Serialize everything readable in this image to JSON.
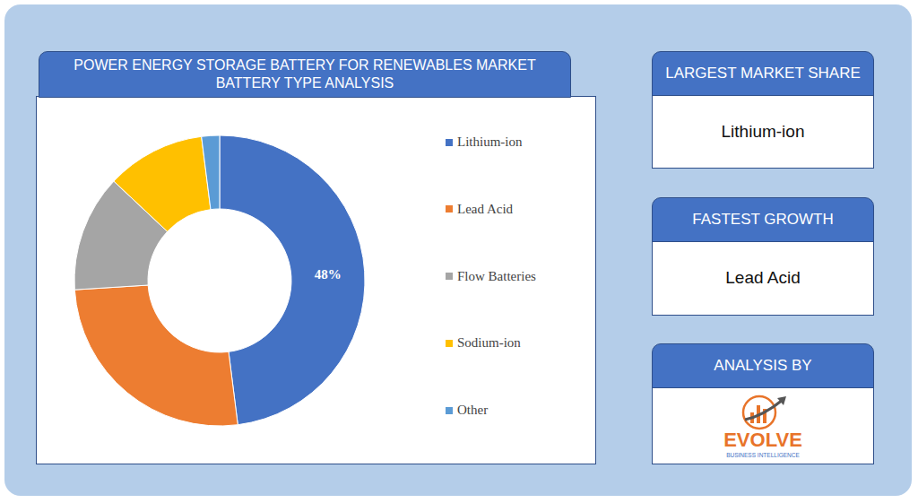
{
  "chart_data": {
    "type": "pie",
    "title": "POWER ENERGY STORAGE BATTERY FOR RENEWABLES MARKET BATTERY TYPE ANALYSIS",
    "categories": [
      "Lithium-ion",
      "Lead Acid",
      "Flow Batteries",
      "Sodium-ion",
      "Other"
    ],
    "values": [
      48,
      26,
      13,
      11,
      2
    ],
    "value_labels": [
      "48%",
      null,
      null,
      null,
      null
    ],
    "colors": [
      "#4472c4",
      "#ed7d31",
      "#a5a5a5",
      "#ffc000",
      "#5b9bd5"
    ],
    "data_labels": true,
    "legend": "right"
  },
  "panels": [
    {
      "header": "LARGEST MARKET SHARE",
      "text": "Lithium-ion"
    },
    {
      "header": "FASTEST GROWTH",
      "text": "Lead Acid"
    },
    {
      "header": "ANALYSIS BY",
      "logo": {
        "name": "EVOLVE",
        "tagline": "BUSINESS INTELLIGENCE"
      }
    }
  ]
}
